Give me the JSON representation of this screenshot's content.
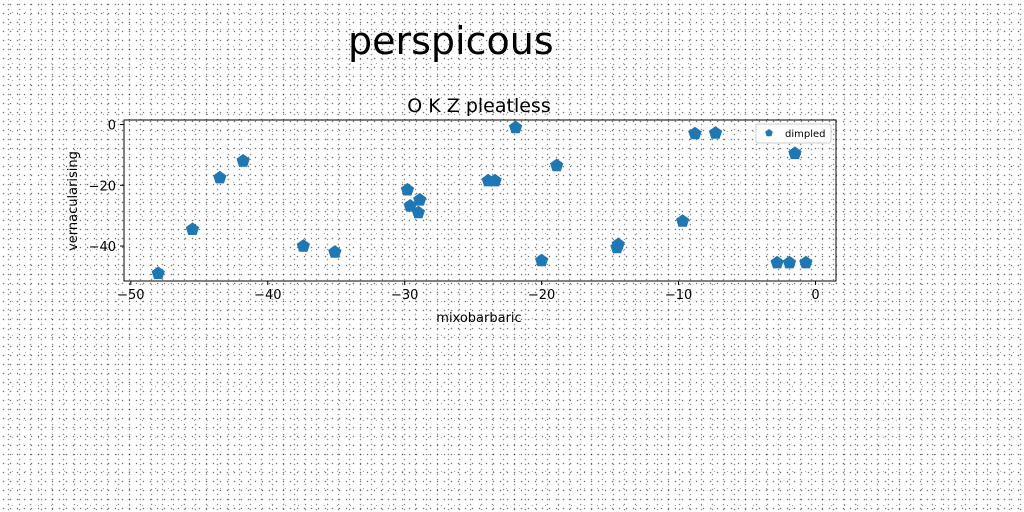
{
  "header": {
    "title": "perspicous"
  },
  "chart_data": {
    "type": "scatter",
    "title": "O K Z pleatless",
    "xlabel": "mixobarbaric",
    "ylabel": "vernacularising",
    "xlim": [
      -50.5,
      1.5
    ],
    "ylim": [
      -51.5,
      1.5
    ],
    "xticks": [
      -50,
      -40,
      -30,
      -20,
      -10,
      0
    ],
    "yticks": [
      0,
      -20,
      -40
    ],
    "xtick_labels": [
      "−50",
      "−40",
      "−30",
      "−20",
      "−10",
      "0"
    ],
    "ytick_labels": [
      "0",
      "−20",
      "−40"
    ],
    "legend": {
      "placement": "top-right"
    },
    "grid": false,
    "marker": "pentagon",
    "color": "#1f77b4",
    "series": [
      {
        "name": "dimpled",
        "points": [
          [
            -48.0,
            -49.0
          ],
          [
            -45.5,
            -34.5
          ],
          [
            -43.5,
            -17.5
          ],
          [
            -41.8,
            -12.0
          ],
          [
            -37.4,
            -40.0
          ],
          [
            -35.1,
            -42.0
          ],
          [
            -29.8,
            -21.5
          ],
          [
            -29.6,
            -26.8
          ],
          [
            -29.0,
            -29.0
          ],
          [
            -28.9,
            -24.8
          ],
          [
            -23.9,
            -18.5
          ],
          [
            -23.4,
            -18.5
          ],
          [
            -21.9,
            -1.0
          ],
          [
            -20.0,
            -44.8
          ],
          [
            -18.9,
            -13.5
          ],
          [
            -14.5,
            -40.5
          ],
          [
            -14.4,
            -39.5
          ],
          [
            -9.7,
            -31.8
          ],
          [
            -8.8,
            -3.0
          ],
          [
            -7.3,
            -2.8
          ],
          [
            -1.5,
            -9.5
          ],
          [
            -2.8,
            -45.5
          ],
          [
            -1.9,
            -45.5
          ],
          [
            -0.7,
            -45.5
          ]
        ]
      }
    ]
  }
}
